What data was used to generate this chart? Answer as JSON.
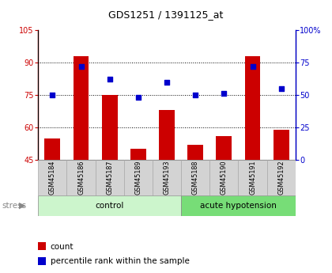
{
  "title": "GDS1251 / 1391125_at",
  "samples": [
    "GSM45184",
    "GSM45186",
    "GSM45187",
    "GSM45189",
    "GSM45193",
    "GSM45188",
    "GSM45190",
    "GSM45191",
    "GSM45192"
  ],
  "counts": [
    55,
    93,
    75,
    50,
    68,
    52,
    56,
    93,
    59
  ],
  "percentiles": [
    50,
    72,
    62,
    48,
    60,
    50,
    51,
    72,
    55
  ],
  "ylim_left": [
    45,
    105
  ],
  "ylim_right": [
    0,
    100
  ],
  "yticks_left": [
    45,
    60,
    75,
    90,
    105
  ],
  "yticks_right": [
    0,
    25,
    50,
    75,
    100
  ],
  "grid_yticks": [
    60,
    75,
    90
  ],
  "bar_color": "#cc0000",
  "dot_color": "#0000cc",
  "n_control": 5,
  "n_acute": 4,
  "control_label": "control",
  "acute_label": "acute hypotension",
  "stress_label": "stress",
  "legend_count": "count",
  "legend_percentile": "percentile rank within the sample",
  "bg_color_tick": "#d3d3d3",
  "bg_color_control": "#ccf5cc",
  "bg_color_acute": "#77dd77",
  "title_fontsize": 9,
  "tick_fontsize": 7,
  "label_fontsize": 7.5,
  "legend_fontsize": 7.5
}
